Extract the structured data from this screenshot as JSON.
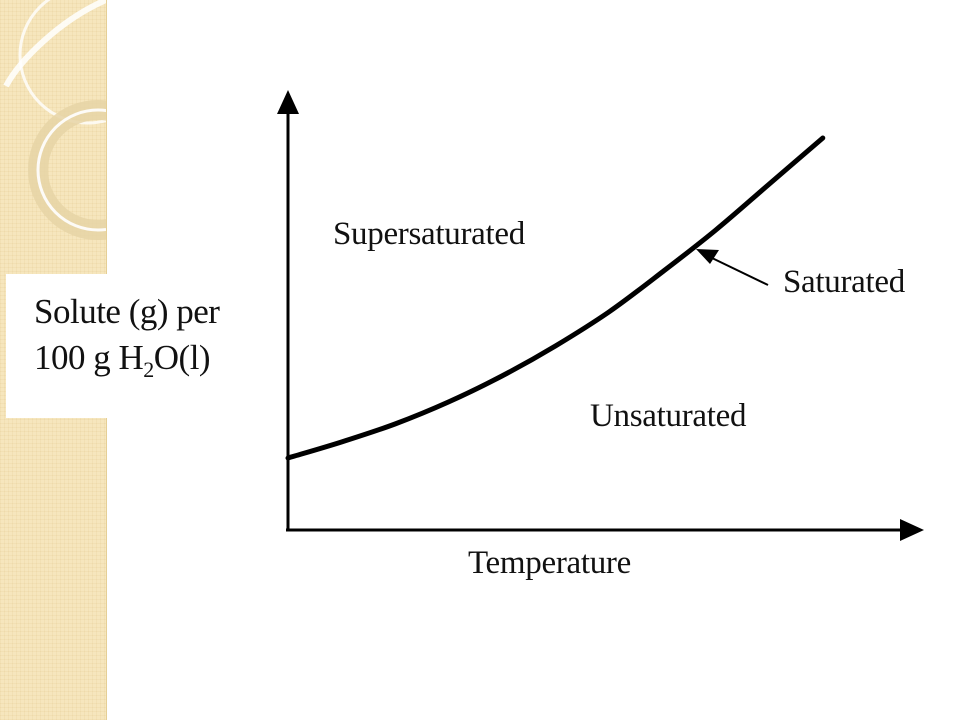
{
  "chart_data": {
    "type": "line",
    "xlabel": "Temperature",
    "ylabel": {
      "line1": "Solute (g) per",
      "line2_prefix": "100 g H",
      "line2_subscript": "2",
      "line2_suffix": "O(l)"
    },
    "series": [
      {
        "name": "Saturated",
        "x": [
          0,
          0.1,
          0.2,
          0.3,
          0.4,
          0.5,
          0.6,
          0.7,
          0.8,
          0.9,
          1.0
        ],
        "y": [
          0.18,
          0.22,
          0.265,
          0.32,
          0.385,
          0.46,
          0.545,
          0.645,
          0.75,
          0.865,
          0.98
        ]
      }
    ],
    "regions": {
      "upper": "Supersaturated",
      "lower": "Unsaturated"
    },
    "annotation": "Saturated",
    "xlim": [
      0,
      1.15
    ],
    "ylim": [
      0,
      1.0
    ],
    "ticks": "none",
    "grid": false
  },
  "colors": {
    "sidebar_bg": "#f6e6bd",
    "curve": "#000000",
    "axis": "#000000"
  }
}
